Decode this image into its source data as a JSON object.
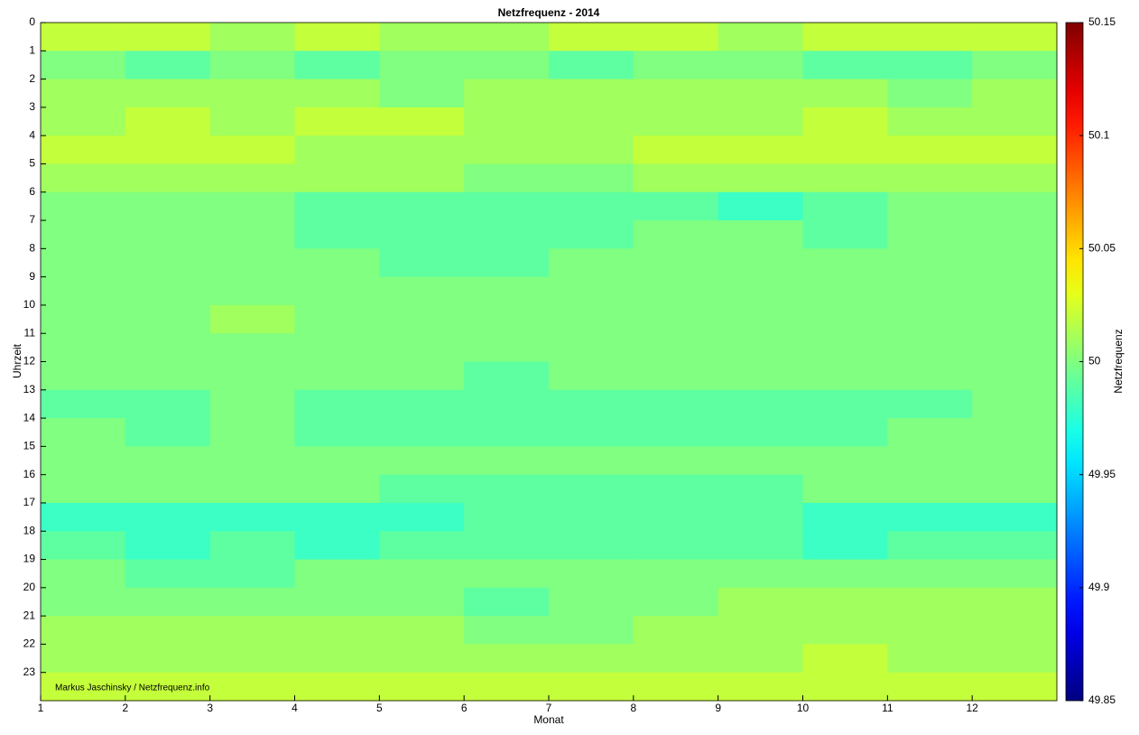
{
  "chart_data": {
    "type": "heatmap",
    "title": "Netzfrequenz - 2014",
    "x_label": "Monat",
    "y_label": "Uhrzeit",
    "colorbar_label": "Netzfrequenz",
    "annotation": "Markus Jaschinsky / Netzfrequenz.info",
    "colormap": "jet",
    "x": [
      1,
      2,
      3,
      4,
      5,
      6,
      7,
      8,
      9,
      10,
      11,
      12
    ],
    "y": [
      0,
      1,
      2,
      3,
      4,
      5,
      6,
      7,
      8,
      9,
      10,
      11,
      12,
      13,
      14,
      15,
      16,
      17,
      18,
      19,
      20,
      21,
      22,
      23
    ],
    "z": [
      [
        50.02,
        50.02,
        50.01,
        50.02,
        50.01,
        50.01,
        50.02,
        50.02,
        50.01,
        50.02,
        50.02,
        50.02
      ],
      [
        50.0,
        49.99,
        50.0,
        49.99,
        50.0,
        50.0,
        49.99,
        50.0,
        50.0,
        49.99,
        49.99,
        50.0
      ],
      [
        50.01,
        50.01,
        50.01,
        50.01,
        50.0,
        50.01,
        50.01,
        50.01,
        50.01,
        50.01,
        50.0,
        50.01
      ],
      [
        50.01,
        50.02,
        50.01,
        50.02,
        50.02,
        50.01,
        50.01,
        50.01,
        50.01,
        50.02,
        50.01,
        50.01
      ],
      [
        50.02,
        50.02,
        50.02,
        50.01,
        50.01,
        50.01,
        50.01,
        50.02,
        50.02,
        50.02,
        50.02,
        50.02
      ],
      [
        50.01,
        50.01,
        50.01,
        50.01,
        50.01,
        50.0,
        50.0,
        50.01,
        50.01,
        50.01,
        50.01,
        50.01
      ],
      [
        50.0,
        50.0,
        50.0,
        49.99,
        49.99,
        49.99,
        49.99,
        49.99,
        49.98,
        49.99,
        50.0,
        50.0
      ],
      [
        50.0,
        50.0,
        50.0,
        49.99,
        49.99,
        49.99,
        49.99,
        50.0,
        50.0,
        49.99,
        50.0,
        50.0
      ],
      [
        50.0,
        50.0,
        50.0,
        50.0,
        49.99,
        49.99,
        50.0,
        50.0,
        50.0,
        50.0,
        50.0,
        50.0
      ],
      [
        50.0,
        50.0,
        50.0,
        50.0,
        50.0,
        50.0,
        50.0,
        50.0,
        50.0,
        50.0,
        50.0,
        50.0
      ],
      [
        50.0,
        50.0,
        50.01,
        50.0,
        50.0,
        50.0,
        50.0,
        50.0,
        50.0,
        50.0,
        50.0,
        50.0
      ],
      [
        50.0,
        50.0,
        50.0,
        50.0,
        50.0,
        50.0,
        50.0,
        50.0,
        50.0,
        50.0,
        50.0,
        50.0
      ],
      [
        50.0,
        50.0,
        50.0,
        50.0,
        50.0,
        49.99,
        50.0,
        50.0,
        50.0,
        50.0,
        50.0,
        50.0
      ],
      [
        49.99,
        49.99,
        50.0,
        49.99,
        49.99,
        49.99,
        49.99,
        49.99,
        49.99,
        49.99,
        49.99,
        50.0
      ],
      [
        50.0,
        49.99,
        50.0,
        49.99,
        49.99,
        49.99,
        49.99,
        49.99,
        49.99,
        49.99,
        50.0,
        50.0
      ],
      [
        50.0,
        50.0,
        50.0,
        50.0,
        50.0,
        50.0,
        50.0,
        50.0,
        50.0,
        50.0,
        50.0,
        50.0
      ],
      [
        50.0,
        50.0,
        50.0,
        50.0,
        49.99,
        49.99,
        49.99,
        49.99,
        49.99,
        50.0,
        50.0,
        50.0
      ],
      [
        49.98,
        49.98,
        49.98,
        49.98,
        49.98,
        49.99,
        49.99,
        49.99,
        49.99,
        49.98,
        49.98,
        49.98
      ],
      [
        49.99,
        49.98,
        49.99,
        49.98,
        49.99,
        49.99,
        49.99,
        49.99,
        49.99,
        49.98,
        49.99,
        49.99
      ],
      [
        50.0,
        49.99,
        49.99,
        50.0,
        50.0,
        50.0,
        50.0,
        50.0,
        50.0,
        50.0,
        50.0,
        50.0
      ],
      [
        50.0,
        50.0,
        50.0,
        50.0,
        50.0,
        49.99,
        50.0,
        50.0,
        50.01,
        50.01,
        50.01,
        50.01
      ],
      [
        50.01,
        50.01,
        50.01,
        50.01,
        50.01,
        50.0,
        50.0,
        50.01,
        50.01,
        50.01,
        50.01,
        50.01
      ],
      [
        50.01,
        50.01,
        50.01,
        50.01,
        50.01,
        50.01,
        50.01,
        50.01,
        50.01,
        50.02,
        50.01,
        50.01
      ],
      [
        50.02,
        50.02,
        50.02,
        50.02,
        50.02,
        50.02,
        50.02,
        50.02,
        50.02,
        50.02,
        50.02,
        50.02
      ]
    ],
    "xlim": [
      1,
      13
    ],
    "xticks": [
      1,
      2,
      3,
      4,
      5,
      6,
      7,
      8,
      9,
      10,
      11,
      12
    ],
    "ylim": [
      0,
      24
    ],
    "yticks": [
      0,
      1,
      2,
      3,
      4,
      5,
      6,
      7,
      8,
      9,
      10,
      11,
      12,
      13,
      14,
      15,
      16,
      17,
      18,
      19,
      20,
      21,
      22,
      23
    ],
    "clim": [
      49.85,
      50.15
    ],
    "cticks": [
      49.85,
      49.9,
      49.95,
      50,
      50.05,
      50.1,
      50.15
    ]
  }
}
